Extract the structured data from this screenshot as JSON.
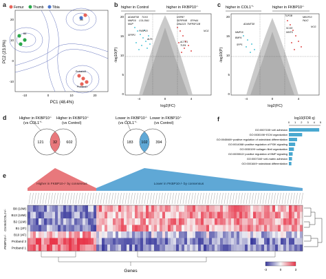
{
  "panels": {
    "a": {
      "letter": "a",
      "legend": [
        {
          "label": "Femur",
          "color": "#e8645a"
        },
        {
          "label": "Thumb",
          "color": "#2aa84a"
        },
        {
          "label": "Tibia",
          "color": "#4a74c9"
        }
      ],
      "xlabel": "PC1 (48.4%)",
      "ylabel": "PC2 (23.9%)",
      "xticks": [
        "-10",
        "0",
        "10",
        "20"
      ],
      "yticks": [
        "20",
        "10",
        "0",
        "-10"
      ],
      "point_labels": [
        "Proband3",
        "Proband1",
        "B8",
        "B13",
        "B2",
        "B1",
        "B10",
        "ctrl"
      ]
    },
    "b": {
      "letter": "b",
      "left_header": "higher in Control",
      "right_header": "higher in FKBP10",
      "right_header_sup": "-/-",
      "xlabel": "log2(FC)",
      "ylabel": "-log10(P)",
      "xticks": [
        "-4",
        "0",
        "4"
      ],
      "yticks": [
        "20",
        "15",
        "10",
        "5",
        "0"
      ],
      "genes_left": [
        "ADAMTS8",
        "TOX3",
        "MMP16",
        "COL15A1",
        "FKBP10",
        "MGP",
        "SFRP1",
        "ALPL"
      ],
      "genes_right": [
        "HSPB7",
        "SERPINB",
        "EPHA4",
        "DNAJC5",
        "TNFRSF11B",
        "NCG",
        "ACTC1",
        "TLR4"
      ]
    },
    "c": {
      "letter": "c",
      "left_header": "higher in COL1",
      "left_header_sup": "+/-",
      "right_header": "higher in FKBP10",
      "right_header_sup": "-/-",
      "xlabel": "log2(FC)",
      "ylabel": "-log10(P)",
      "xticks": [
        "-4",
        "0",
        "4"
      ],
      "yticks": [
        "20",
        "15",
        "10",
        "5",
        "0"
      ],
      "genes_left": [
        "ADAMTS8",
        "MMP16",
        "BMP4",
        "SPP1"
      ],
      "genes_right": [
        "TOP2B",
        "MEGF10",
        "PAX2",
        "SCG5",
        "WNT6",
        "NCG"
      ]
    },
    "d": {
      "letter": "d",
      "venn1": {
        "left_title": "Higher in FKBP10",
        "left_sup": "-/-",
        "left_sub": "(vs COL1",
        "left_sub_sup": "+/-",
        "right_title": "Higher in FKBP10",
        "right_sup": "-/-",
        "right_sub": "(vs Control)",
        "left_count": "121",
        "overlap": "32",
        "right_count": "602"
      },
      "venn2": {
        "left_title": "Lower in FKBP10",
        "left_sup": "-/-",
        "left_sub": "(vs COL1",
        "left_sub_sup": "+/-",
        "right_title": "Lower in FKBP10",
        "right_sup": "-/-",
        "right_sub": "(vs Control)",
        "left_count": "183",
        "overlap": "102",
        "right_count": "394"
      }
    },
    "f": {
      "letter": "f",
      "axis_title": "log10(FDR q)",
      "xticks": [
        "0",
        "1",
        "2",
        "3",
        "4",
        "5"
      ],
      "terms": [
        {
          "label": "GO:0007155~cell adhesion",
          "value": 4.8
        },
        {
          "label": "GO:0030198~ECM organization",
          "value": 2.1
        },
        {
          "label": "GO:0045669~positive regulation of osteoblast differentiation",
          "value": 1.3
        },
        {
          "label": "GO:0014068~positive regulation of PI3K signaling",
          "value": 1.0
        },
        {
          "label": "GO:0030199~collagen fibril organization",
          "value": 0.8
        },
        {
          "label": "GO:0005513~positive regulation of BMP signaling",
          "value": 0.6
        },
        {
          "label": "GO:0007160~cell-matrix adhesion",
          "value": 0.5
        },
        {
          "label": "GO:0001649~osteoblast differentiation",
          "value": 0.4
        }
      ],
      "bar_color": "#4aa8d0"
    },
    "e": {
      "letter": "e",
      "higher_banner": "Higher in FKBP10-/- by consensus",
      "lower_banner": "Lower in FKBP10-/- by consensus",
      "rows": [
        {
          "label": "B8 (18M)",
          "group": ""
        },
        {
          "label": "B13 (18M)",
          "group": "COL1+/-"
        },
        {
          "label": "B2 (11M)",
          "group": ""
        },
        {
          "label": "B1 (2F)",
          "group": "Control"
        },
        {
          "label": "B10 (4F)",
          "group": ""
        },
        {
          "label": "Proband 3",
          "group": "FKBP10-/-"
        },
        {
          "label": "Proband 1",
          "group": ""
        }
      ],
      "groups": [
        "COL1+/-",
        "Control",
        "FKBP10-/-"
      ],
      "xlabel": "Genes",
      "colorbar_ticks": [
        "-3",
        "0",
        "3"
      ],
      "colors": {
        "high": "#e8364a",
        "low": "#3b3b9e",
        "mid": "#f7f7f7",
        "higher_band": "#e8787c",
        "lower_band": "#5fa8d6"
      }
    }
  }
}
